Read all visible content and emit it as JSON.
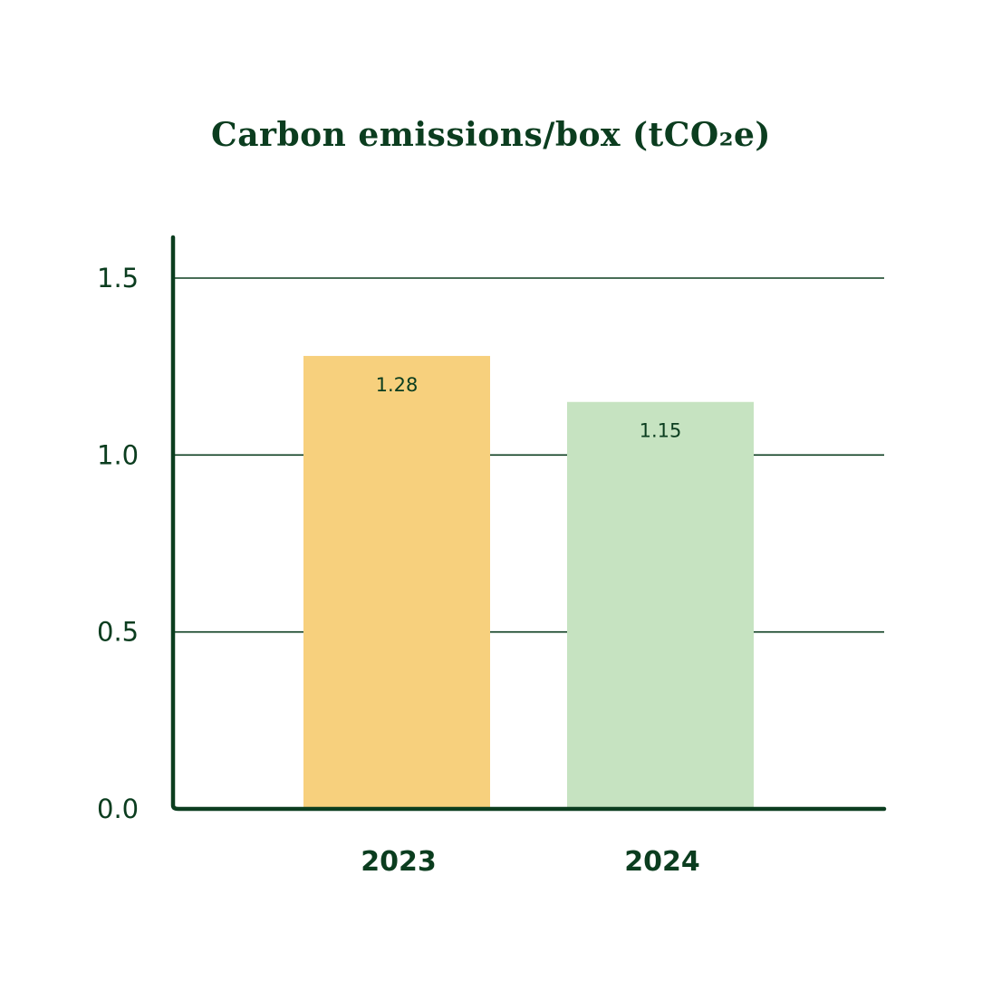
{
  "chart_data": {
    "type": "bar",
    "title": "Carbon emissions/box (tCO₂e)",
    "xlabel": "",
    "ylabel": "",
    "categories": [
      "2023",
      "2024"
    ],
    "values": [
      1.28,
      1.15
    ],
    "data_labels": [
      "1.28",
      "1.15"
    ],
    "bar_colors": [
      "#f7d07d",
      "#c6e3c1"
    ],
    "ylim": [
      0,
      1.6
    ],
    "yticks": [
      0.0,
      0.5,
      1.0,
      1.5
    ],
    "ytick_labels": [
      "0.0",
      "0.5",
      "1.0",
      "1.5"
    ],
    "grid": true,
    "legend": "none"
  },
  "colors": {
    "text": "#0b3d1f",
    "axis": "#0b3d1f",
    "grid": "#0b3d1f"
  }
}
